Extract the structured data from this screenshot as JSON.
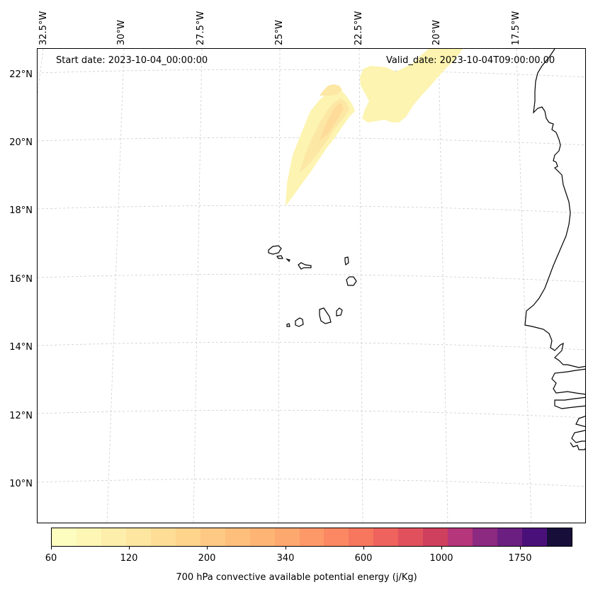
{
  "map": {
    "start_date": "Start date: 2023-10-04_00:00:00",
    "valid_date": "Valid_date: 2023-10-04T09:00:00.00",
    "longitude_labels": [
      "32.5°W",
      "30°W",
      "27.5°W",
      "25°W",
      "22.5°W",
      "20°W",
      "17.5°W"
    ],
    "latitude_labels": [
      "22°N",
      "20°N",
      "18°N",
      "16°N",
      "14°N",
      "12°N",
      "10°N"
    ],
    "features": [
      "cape-verde-islands",
      "west-african-coastline",
      "cape-field-shading"
    ]
  },
  "colorbar": {
    "title": "700 hPa convective available potential energy (j/Kg)",
    "tick_labels": [
      "60",
      "120",
      "200",
      "340",
      "600",
      "1000",
      "1750"
    ],
    "colors": [
      "#fcfdbf",
      "#fdf6b5",
      "#fdeeab",
      "#fde6a0",
      "#fedd96",
      "#fed38c",
      "#fec984",
      "#febe7c",
      "#fdb475",
      "#fda86f",
      "#fd9869",
      "#fb8862",
      "#f6765e",
      "#ee635d",
      "#e0515d",
      "#cf3f5e",
      "#b5367a",
      "#8c2981",
      "#6b1f80",
      "#4a1079",
      "#170e3a"
    ]
  },
  "colors": {
    "coast": "#000000",
    "grid": "#cccccc"
  }
}
